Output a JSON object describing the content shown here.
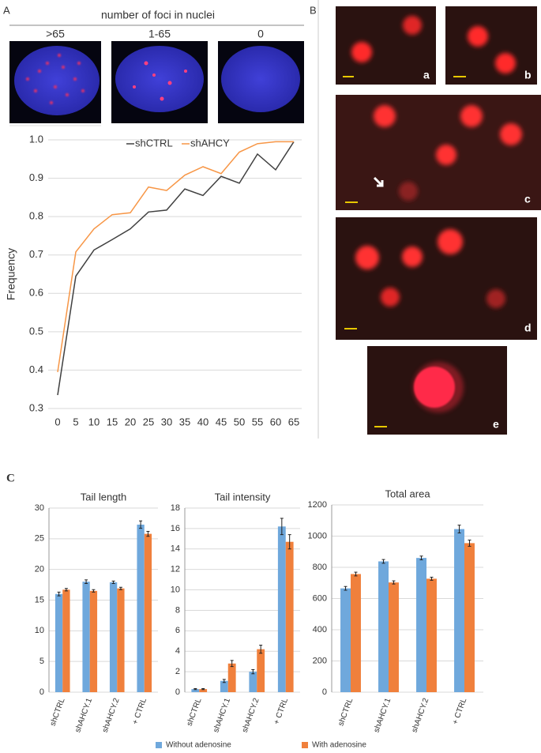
{
  "figure": {
    "panel_a": "A",
    "panel_b": "B",
    "panel_c": "C",
    "foci_header": "number of foci in nuclei",
    "foci_groups": [
      ">65",
      "1-65",
      "0"
    ],
    "image_labels": [
      "a",
      "b",
      "c",
      "d",
      "e"
    ]
  },
  "chart_data": [
    {
      "type": "line",
      "ylabel": "Frequency",
      "x": [
        0,
        5,
        10,
        15,
        20,
        25,
        30,
        35,
        40,
        45,
        50,
        55,
        60,
        65
      ],
      "series": [
        {
          "name": "shCTRL",
          "color": "#404040",
          "values": [
            0.335,
            0.645,
            0.713,
            0.74,
            0.768,
            0.812,
            0.817,
            0.872,
            0.855,
            0.905,
            0.887,
            0.963,
            0.922,
            0.995
          ]
        },
        {
          "name": "shAHCY",
          "color": "#f79646",
          "values": [
            0.395,
            0.708,
            0.768,
            0.805,
            0.81,
            0.877,
            0.868,
            0.908,
            0.93,
            0.912,
            0.968,
            0.99,
            0.995,
            0.995
          ]
        }
      ],
      "xlim": [
        0,
        65
      ],
      "xticks": [
        0,
        5,
        10,
        15,
        20,
        25,
        30,
        35,
        40,
        45,
        50,
        55,
        60,
        65
      ],
      "ylim": [
        0.3,
        1.0
      ],
      "yticks": [
        0.3,
        0.4,
        0.5,
        0.6,
        0.7,
        0.8,
        0.9,
        {
          "value": 1,
          "label": "1.0"
        }
      ],
      "grid": true,
      "legend": "top"
    },
    {
      "type": "bar",
      "title": "Tail length",
      "categories": [
        "shCTRL",
        "shAHCY.1",
        "shAHCY.2",
        "+ CTRL"
      ],
      "series": [
        {
          "name": "Without adenosine",
          "color": "#6fa8dc",
          "values": [
            16.0,
            18.0,
            17.9,
            27.3
          ],
          "errors": [
            0.3,
            0.3,
            0.2,
            0.6
          ]
        },
        {
          "name": "With adenosine",
          "color": "#f0803c",
          "values": [
            16.7,
            16.5,
            16.9,
            25.8
          ],
          "errors": [
            0.2,
            0.2,
            0.2,
            0.4
          ]
        }
      ],
      "ylim": [
        0,
        30
      ],
      "yticks": [
        0,
        5,
        10,
        15,
        20,
        25,
        30
      ],
      "grid": true,
      "legend": "bottom"
    },
    {
      "type": "bar",
      "title": "Tail intensity",
      "categories": [
        "shCTRL",
        "shAHCY.1",
        "shAHCY.2",
        "+ CTRL"
      ],
      "series": [
        {
          "color": "#6fa8dc",
          "values": [
            0.3,
            1.1,
            2.0,
            16.2
          ],
          "errors": [
            0.05,
            0.15,
            0.2,
            0.8
          ]
        },
        {
          "color": "#f0803c",
          "values": [
            0.3,
            2.8,
            4.2,
            14.7
          ],
          "errors": [
            0.05,
            0.3,
            0.4,
            0.7
          ]
        }
      ],
      "ylim": [
        0,
        18
      ],
      "yticks": [
        0,
        2,
        4,
        6,
        8,
        10,
        12,
        14,
        16,
        18
      ],
      "grid": true
    },
    {
      "type": "bar",
      "title": "Total area",
      "categories": [
        "shCTRL",
        "shAHCY.1",
        "shAHCY.2",
        "+ CTRL"
      ],
      "series": [
        {
          "color": "#6fa8dc",
          "values": [
            665,
            838,
            860,
            1045
          ],
          "errors": [
            12,
            12,
            12,
            25
          ]
        },
        {
          "color": "#f0803c",
          "values": [
            757,
            703,
            727,
            955
          ],
          "errors": [
            12,
            10,
            10,
            20
          ]
        }
      ],
      "ylim": [
        0,
        1200
      ],
      "yticks": [
        0,
        200,
        400,
        600,
        800,
        1000,
        1200
      ],
      "grid": true
    }
  ]
}
